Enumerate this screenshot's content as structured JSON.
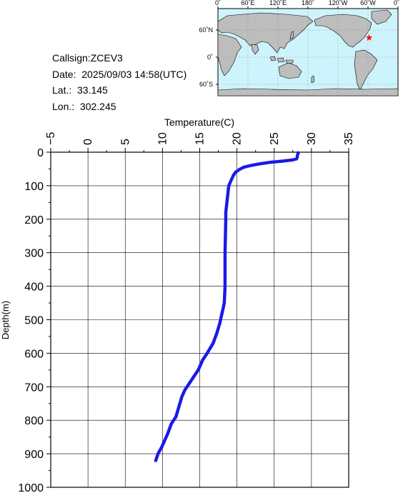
{
  "metadata": {
    "callsign": "Callsign:ZCEV3",
    "date": "Date:  2025/09/03 14:58(UTC)",
    "lat": "Lat.:  33.145",
    "lon": "Lon.:  302.245"
  },
  "map": {
    "top_labels": [
      "0˚",
      "60˚E",
      "120˚E",
      "180˚",
      "120˚W",
      "60˚W",
      "0˚"
    ],
    "left_labels": [
      "60˚N",
      "0˚",
      "60˚S"
    ],
    "ocean_color": "#cdf4fc",
    "land_color": "#bdbdbd",
    "marker_color": "#ff0000",
    "marker_lon": 302.245,
    "marker_lat": 33.145
  },
  "chart_data": {
    "type": "scatter",
    "xlabel": "Temperature(C)",
    "ylabel": "Depth(m)",
    "xlim": [
      -5,
      35
    ],
    "ylim": [
      0,
      1000
    ],
    "y_inverted": true,
    "x_ticks": [
      "−5",
      "0",
      "5",
      "10",
      "15",
      "20",
      "25",
      "30",
      "35"
    ],
    "y_ticks": [
      "0",
      "100",
      "200",
      "300",
      "400",
      "500",
      "600",
      "700",
      "800",
      "900",
      "1000"
    ],
    "grid": true,
    "series": [
      {
        "color": "#1a1ae6",
        "points": [
          [
            28.2,
            2
          ],
          [
            28.2,
            5
          ],
          [
            28.1,
            10
          ],
          [
            28.1,
            15
          ],
          [
            28.0,
            20
          ],
          [
            27.5,
            23
          ],
          [
            26.0,
            27
          ],
          [
            24.5,
            30
          ],
          [
            23.0,
            35
          ],
          [
            21.8,
            40
          ],
          [
            20.9,
            45
          ],
          [
            20.3,
            52
          ],
          [
            19.8,
            60
          ],
          [
            19.5,
            70
          ],
          [
            19.3,
            80
          ],
          [
            19.1,
            90
          ],
          [
            18.9,
            100
          ],
          [
            18.8,
            120
          ],
          [
            18.7,
            140
          ],
          [
            18.6,
            160
          ],
          [
            18.5,
            180
          ],
          [
            18.5,
            200
          ],
          [
            18.45,
            250
          ],
          [
            18.4,
            300
          ],
          [
            18.4,
            350
          ],
          [
            18.4,
            400
          ],
          [
            18.3,
            450
          ],
          [
            18.0,
            480
          ],
          [
            17.7,
            510
          ],
          [
            17.3,
            540
          ],
          [
            16.8,
            570
          ],
          [
            16.0,
            600
          ],
          [
            15.4,
            620
          ],
          [
            14.8,
            650
          ],
          [
            14.2,
            670
          ],
          [
            13.6,
            690
          ],
          [
            13.0,
            710
          ],
          [
            12.6,
            730
          ],
          [
            12.2,
            760
          ],
          [
            11.8,
            790
          ],
          [
            11.2,
            810
          ],
          [
            10.7,
            840
          ],
          [
            10.3,
            860
          ],
          [
            9.9,
            880
          ],
          [
            9.4,
            900
          ],
          [
            9.1,
            920
          ]
        ]
      }
    ]
  }
}
